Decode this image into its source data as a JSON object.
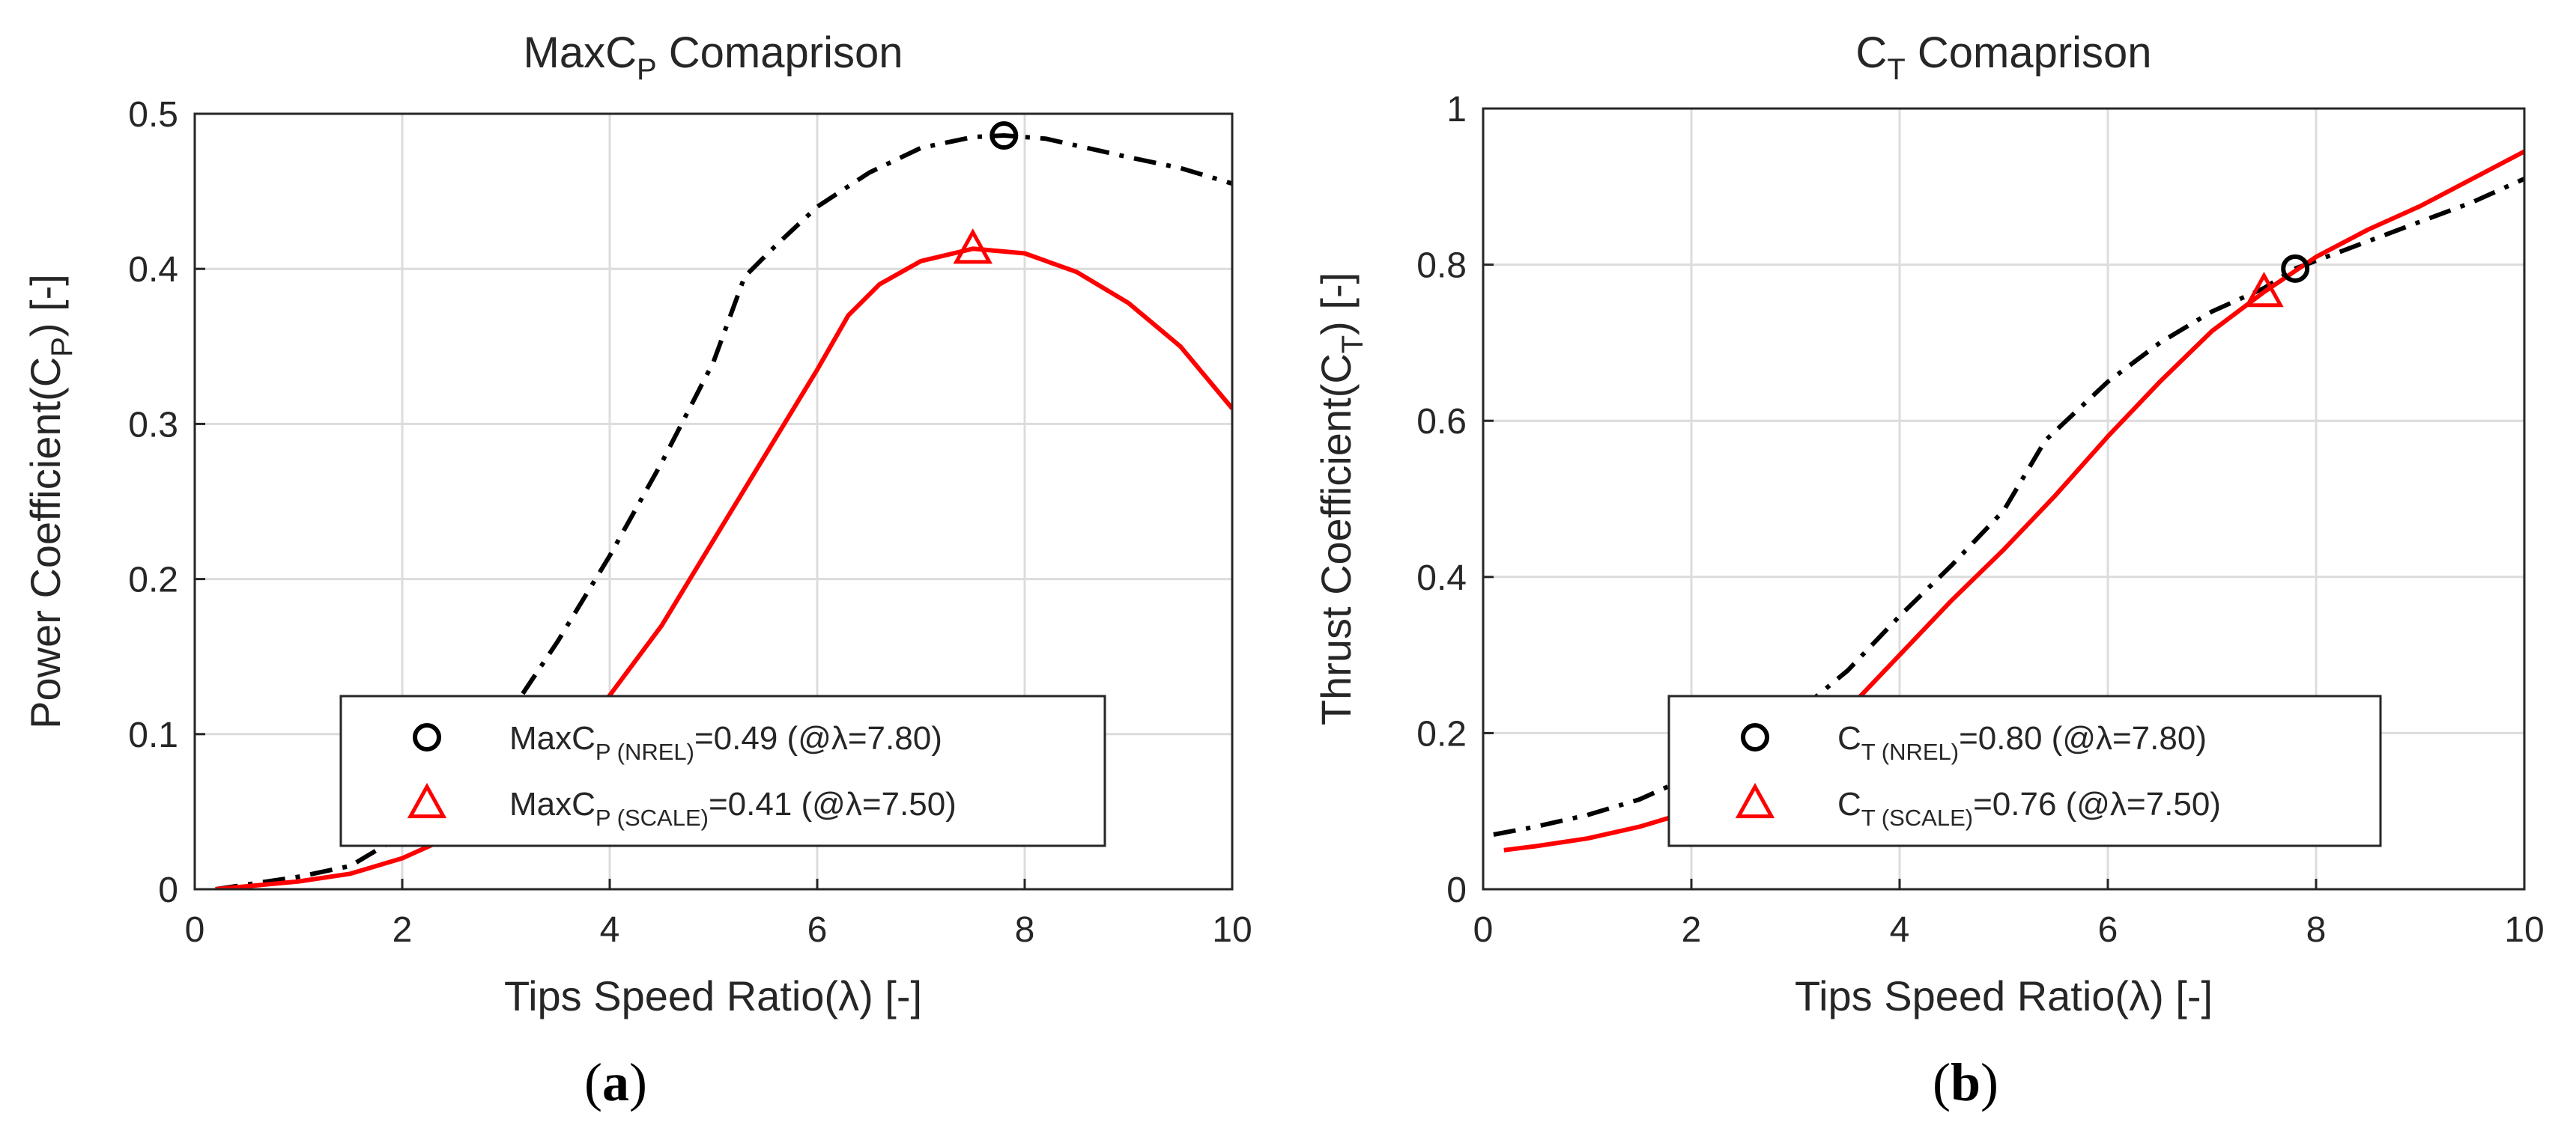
{
  "chart_data": [
    {
      "type": "line",
      "panel_label": "a",
      "title": {
        "main": "MaxC",
        "sub": "P",
        "rest": " Comaprison"
      },
      "xlabel": "Tips Speed Ratio(λ) [-]",
      "ylabel": {
        "main": "Power Coefficient(C",
        "sub": "P",
        "rest": ") [-]"
      },
      "xlim": [
        0,
        10
      ],
      "ylim": [
        0,
        0.5
      ],
      "xticks": [
        "0",
        "2",
        "4",
        "6",
        "8",
        "10"
      ],
      "yticks": [
        "0",
        "0.1",
        "0.2",
        "0.3",
        "0.4",
        "0.5"
      ],
      "grid": true,
      "legend_position": "bottom-right",
      "series": [
        {
          "name": "NREL",
          "color": "#000000",
          "style": "dash-dot",
          "x": [
            0.2,
            1.0,
            1.5,
            2.0,
            2.5,
            3.0,
            3.5,
            4.0,
            4.5,
            5.0,
            5.3,
            5.6,
            6.0,
            6.5,
            7.0,
            7.5,
            7.8,
            8.2,
            8.6,
            9.0,
            9.5,
            10.0
          ],
          "y": [
            0.0,
            0.008,
            0.015,
            0.035,
            0.07,
            0.11,
            0.16,
            0.215,
            0.275,
            0.34,
            0.395,
            0.415,
            0.44,
            0.462,
            0.478,
            0.485,
            0.486,
            0.484,
            0.478,
            0.472,
            0.465,
            0.455
          ]
        },
        {
          "name": "SCALE",
          "color": "#ff0000",
          "style": "solid",
          "x": [
            0.2,
            1.0,
            1.5,
            2.0,
            2.5,
            3.0,
            3.5,
            4.0,
            4.5,
            5.0,
            5.5,
            6.0,
            6.3,
            6.6,
            7.0,
            7.5,
            8.0,
            8.5,
            9.0,
            9.5,
            10.0
          ],
          "y": [
            0.0,
            0.005,
            0.01,
            0.02,
            0.035,
            0.055,
            0.085,
            0.125,
            0.17,
            0.225,
            0.28,
            0.335,
            0.37,
            0.39,
            0.405,
            0.413,
            0.41,
            0.398,
            0.378,
            0.35,
            0.31
          ]
        }
      ],
      "markers": [
        {
          "series": "NREL",
          "x": 7.8,
          "y": 0.486,
          "symbol": "circle",
          "color": "#000000"
        },
        {
          "series": "SCALE",
          "x": 7.5,
          "y": 0.413,
          "symbol": "triangle",
          "color": "#ff0000"
        }
      ],
      "legend": [
        {
          "symbol": "circle",
          "color": "#000000",
          "main": "MaxC",
          "sub": "P (NREL)",
          "rest": "=0.49 (@λ=7.80)"
        },
        {
          "symbol": "triangle",
          "color": "#ff0000",
          "main": "MaxC",
          "sub": "P (SCALE)",
          "rest": "=0.41 (@λ=7.50)"
        }
      ]
    },
    {
      "type": "line",
      "panel_label": "b",
      "title": {
        "main": "C",
        "sub": "T",
        "rest": " Comaprison"
      },
      "xlabel": "Tips Speed Ratio(λ) [-]",
      "ylabel": {
        "main": "Thrust Coefficient(C",
        "sub": "T",
        "rest": ") [-]"
      },
      "xlim": [
        0,
        10
      ],
      "ylim": [
        0,
        1
      ],
      "xticks": [
        "0",
        "2",
        "4",
        "6",
        "8",
        "10"
      ],
      "yticks": [
        "0",
        "0.2",
        "0.4",
        "0.6",
        "0.8",
        "1"
      ],
      "grid": true,
      "legend_position": "bottom-right",
      "series": [
        {
          "name": "NREL",
          "color": "#000000",
          "style": "dash-dot",
          "x": [
            0.1,
            0.5,
            1.0,
            1.5,
            2.0,
            2.5,
            3.0,
            3.5,
            4.0,
            4.5,
            5.0,
            5.4,
            6.0,
            6.5,
            7.0,
            7.5,
            7.8,
            8.5,
            9.0,
            9.5,
            10.0
          ],
          "y": [
            0.07,
            0.08,
            0.095,
            0.115,
            0.145,
            0.18,
            0.225,
            0.28,
            0.35,
            0.415,
            0.485,
            0.575,
            0.65,
            0.7,
            0.74,
            0.77,
            0.795,
            0.83,
            0.855,
            0.88,
            0.91
          ]
        },
        {
          "name": "SCALE",
          "color": "#ff0000",
          "style": "solid",
          "x": [
            0.2,
            0.5,
            1.0,
            1.5,
            2.0,
            2.5,
            3.0,
            3.5,
            4.0,
            4.5,
            5.0,
            5.5,
            6.0,
            6.5,
            7.0,
            7.5,
            8.0,
            8.5,
            9.0,
            9.5,
            10.0
          ],
          "y": [
            0.05,
            0.055,
            0.065,
            0.08,
            0.1,
            0.13,
            0.17,
            0.23,
            0.3,
            0.37,
            0.435,
            0.505,
            0.58,
            0.65,
            0.715,
            0.765,
            0.81,
            0.845,
            0.875,
            0.91,
            0.945
          ]
        }
      ],
      "markers": [
        {
          "series": "NREL",
          "x": 7.8,
          "y": 0.795,
          "symbol": "circle",
          "color": "#000000"
        },
        {
          "series": "SCALE",
          "x": 7.5,
          "y": 0.765,
          "symbol": "triangle",
          "color": "#ff0000"
        }
      ],
      "legend": [
        {
          "symbol": "circle",
          "color": "#000000",
          "main": "C",
          "sub": "T (NREL)",
          "rest": "=0.80 (@λ=7.80)"
        },
        {
          "symbol": "triangle",
          "color": "#ff0000",
          "main": "C",
          "sub": "T (SCALE)",
          "rest": "=0.76 (@λ=7.50)"
        }
      ]
    }
  ]
}
